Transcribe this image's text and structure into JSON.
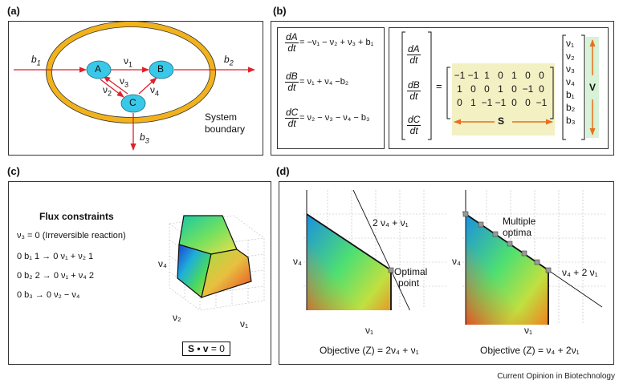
{
  "panels": {
    "a": {
      "label": "(a)",
      "nodes": [
        "A",
        "B",
        "C"
      ],
      "flux_labels": {
        "b1": "b",
        "b1_sub": "1",
        "b2": "b",
        "b2_sub": "2",
        "b3": "b",
        "b3_sub": "3",
        "v1": "ν",
        "v1_sub": "1",
        "v2": "ν",
        "v2_sub": "2",
        "v3": "ν",
        "v3_sub": "3",
        "v4": "ν",
        "v4_sub": "4"
      },
      "boundary_line1": "System",
      "boundary_line2": "boundary"
    },
    "b": {
      "label": "(b)",
      "equations": [
        {
          "num": "dA",
          "den": "dt",
          "rhs": "= −ν₁ − ν₂ + ν₃ + b₁"
        },
        {
          "num": "dB",
          "den": "dt",
          "rhs": "= ν₁ + ν₄ −b₂"
        },
        {
          "num": "dC",
          "den": "dt",
          "rhs": "= ν₂ − ν₃ − ν₄ − b₃"
        }
      ],
      "lhs_vector": [
        {
          "num": "dA",
          "den": "dt"
        },
        {
          "num": "dB",
          "den": "dt"
        },
        {
          "num": "dC",
          "den": "dt"
        }
      ],
      "equals": "=",
      "matrix": [
        [
          "−1",
          "−1",
          "1",
          "0",
          "1",
          "0",
          "0"
        ],
        [
          "1",
          "0",
          "0",
          "1",
          "0",
          "−1",
          "0"
        ],
        [
          "0",
          "1",
          "−1",
          "−1",
          "0",
          "0",
          "−1"
        ]
      ],
      "matrix_label": "S",
      "flux_vector": [
        "ν₁",
        "ν₂",
        "ν₃",
        "ν₄",
        "b₁",
        "b₂",
        "b₃"
      ],
      "vector_label": "V",
      "highlight_color": "#f3f0c4",
      "vector_highlight_color": "#d7f2d7",
      "arrow_color": "#e8701a"
    },
    "c": {
      "label": "(c)",
      "title": "Flux constraints",
      "lines": [
        "ν₃ = 0 (Irreversible reaction)",
        "0 b₁ 1 → 0 ν₁ + ν₂ 1",
        "0 b₂ 2 → 0 ν₁ + ν₄ 2",
        "0 b₃ → 0 ν₂ − ν₄"
      ],
      "axis_labels": {
        "v4": "ν₄",
        "v2": "ν₂",
        "v1": "ν₁"
      },
      "equation_bold": "S • v",
      "equation_rest": " = 0"
    },
    "d": {
      "label": "(d)",
      "left": {
        "line_label": "2 ν₄ + ν₁",
        "annotation_line1": "Optimal",
        "annotation_line2": "point",
        "ylabel": "ν₄",
        "xlabel": "ν₁",
        "objective": "Objective (Z) = 2ν₄ + ν₁"
      },
      "right": {
        "line_label": "ν₄ + 2 ν₁",
        "annotation_line1": "Multiple",
        "annotation_line2": "optima",
        "ylabel": "ν₄",
        "xlabel": "ν₁",
        "objective": "Objective (Z) = ν₄ + 2ν₁"
      }
    }
  },
  "credit": "Current Opinion in Biotechnology",
  "colors": {
    "ring": "#f2b21c",
    "node": "#39c8e8",
    "arrow": "#e0202a"
  }
}
